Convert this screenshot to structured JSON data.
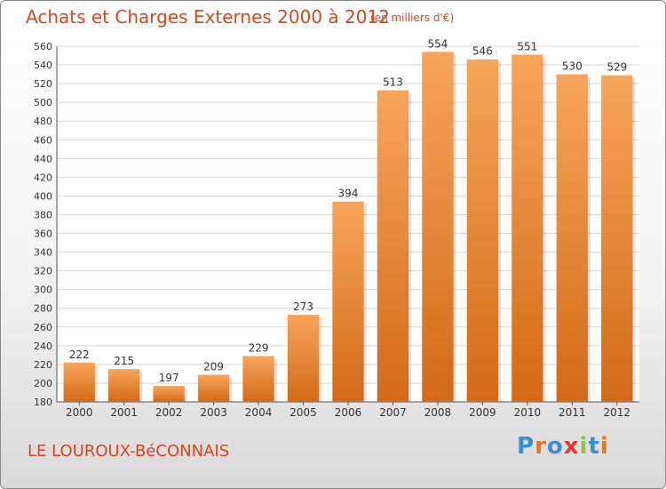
{
  "header": {
    "title": "Achats et Charges Externes 2000 à 2012",
    "unit": "(en milliers d'€)"
  },
  "commune": "LE LOUROUX-BéCONNAIS",
  "logo": {
    "text": "Proxiti"
  },
  "colors": {
    "accent": "#d2491f",
    "bar_top": "#f7a55a",
    "bar_bottom": "#d26a18",
    "grid": "#d6d6d6",
    "logo_letters": [
      "#3a8fd4",
      "#e2762a",
      "#3a8fd4",
      "#e03a2e",
      "#8cc63f",
      "#3a8fd4",
      "#e2762a"
    ]
  },
  "chart_data": {
    "type": "bar",
    "title": "Achats et Charges Externes 2000 à 2012",
    "subtitle": "(en milliers d'€)",
    "categories": [
      "2000",
      "2001",
      "2002",
      "2003",
      "2004",
      "2005",
      "2006",
      "2007",
      "2008",
      "2009",
      "2010",
      "2011",
      "2012"
    ],
    "values": [
      222,
      215,
      197,
      209,
      229,
      273,
      394,
      513,
      554,
      546,
      551,
      530,
      529
    ],
    "ylim": [
      180,
      560
    ],
    "yticks": [
      180,
      200,
      220,
      240,
      260,
      280,
      300,
      320,
      340,
      360,
      380,
      400,
      420,
      440,
      460,
      480,
      500,
      520,
      540,
      560
    ],
    "grid": true,
    "data_labels": true
  }
}
